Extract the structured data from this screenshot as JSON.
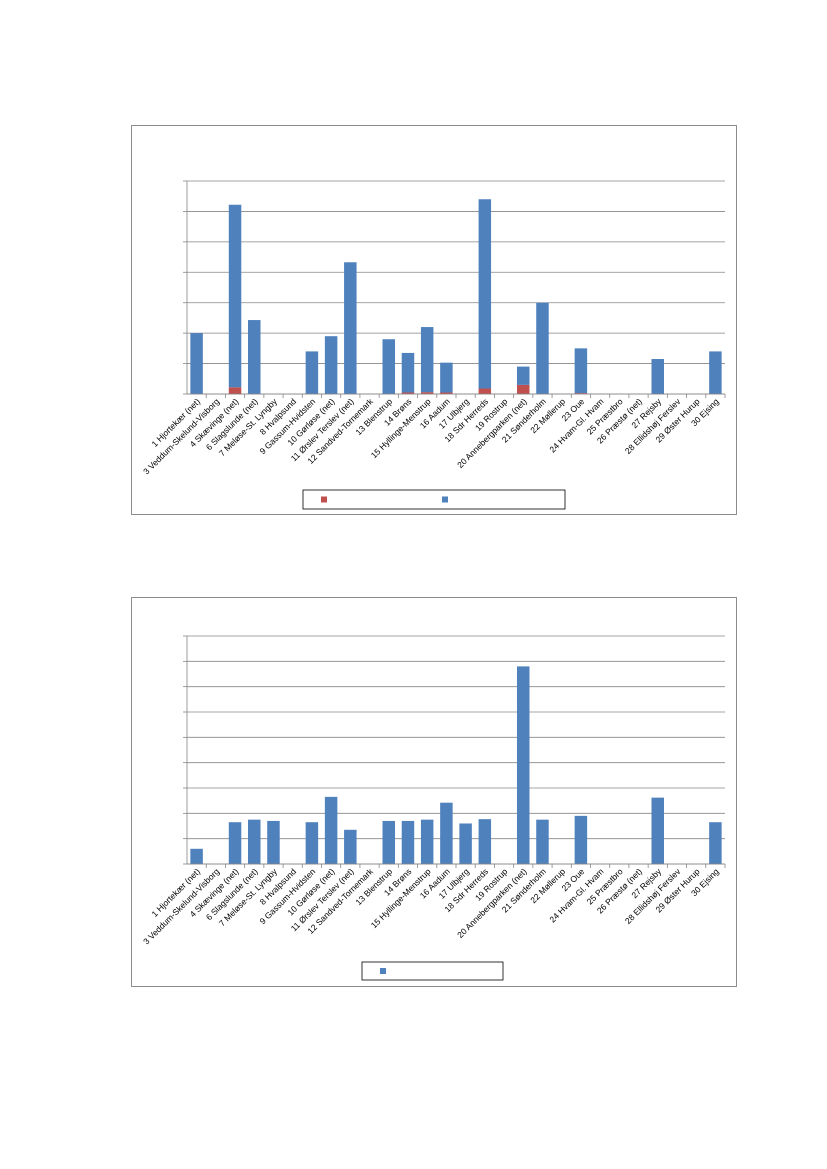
{
  "charts": [
    {
      "type": "bar",
      "stacked": true,
      "grid": true,
      "legend": "bottom",
      "ylim": [
        0,
        7
      ],
      "categories": [
        "1 Hjortekær (net)",
        "3 Veddum-Skelund-Visborg",
        "4 Skævinge (net)",
        "6 Slagslunde (net)",
        "7 Meløse-St. Lyngby",
        "8 Hvalpsund",
        "9 Gassum-Hvidsten",
        "10 Gørløse (net)",
        "11 Ørslev Terslev (net)",
        "12 Sandved-Tornemark",
        "13 Blenstrup",
        "14 Brøns",
        "15 Hyllinge-Menstrup",
        "16 Aadum",
        "17 Ulbjerg",
        "18 Sdr Herreds",
        "19 Rostrup",
        "20 Annebergparken (net)",
        "21 Sønderholm",
        "22 Møllerup",
        "23 Oue",
        "24 Hvam-Gl. Hvam",
        "25 Præstbro",
        "26 Præstø (net)",
        "27 Rejsby",
        "28 Ellidshøj Ferslev",
        "29 Øster Hurup",
        "30 Ejsing"
      ],
      "series": [
        {
          "color": "#c0504d",
          "values": [
            0,
            0,
            0.22,
            0,
            0,
            0,
            0,
            0,
            0,
            0,
            0,
            0.05,
            0.06,
            0.05,
            0,
            0.18,
            0,
            0.3,
            0,
            0,
            0.03,
            0,
            0,
            0,
            0,
            0,
            0,
            0
          ]
        },
        {
          "color": "#4f81bd",
          "values": [
            2.0,
            0,
            6.0,
            2.43,
            0,
            0,
            1.4,
            1.9,
            4.33,
            0,
            1.8,
            1.3,
            2.14,
            0.98,
            0,
            6.22,
            0,
            0.6,
            3.0,
            0,
            1.47,
            0,
            0,
            0,
            1.15,
            0,
            0,
            1.4
          ]
        }
      ]
    },
    {
      "type": "bar",
      "grid": true,
      "legend": "bottom",
      "ylim": [
        0,
        9
      ],
      "categories": [
        "1 Hjortekær (net)",
        "3 Veddum-Skelund-Visborg",
        "4 Skævinge (net)",
        "6 Slagslunde (net)",
        "7 Meløse-St. Lyngby",
        "8 Hvalpsund",
        "9 Gassum-Hvidsten",
        "10 Gørløse (net)",
        "11 Ørslev Terslev (net)",
        "12 Sandved-Tornemark",
        "13 Blenstrup",
        "14 Brøns",
        "15 Hyllinge-Menstrup",
        "16 Aadum",
        "17 Ulbjerg",
        "18 Sdr Herreds",
        "19 Rostrup",
        "20 Annebergparken (net)",
        "21 Sønderholm",
        "22 Møllerup",
        "23 Oue",
        "24 Hvam-Gl. Hvam",
        "25 Præstbro",
        "26 Præstø (net)",
        "27 Rejsby",
        "28 Ellidshøj Ferslev",
        "29 Øster Hurup",
        "30 Ejsing"
      ],
      "series": [
        {
          "color": "#4f81bd",
          "values": [
            0.6,
            0,
            1.65,
            1.75,
            1.7,
            0,
            1.65,
            2.65,
            1.35,
            0,
            1.7,
            1.7,
            1.75,
            2.42,
            1.6,
            1.77,
            0,
            7.8,
            1.75,
            0,
            1.9,
            0,
            0,
            0,
            2.62,
            0,
            0,
            1.65
          ]
        }
      ]
    }
  ]
}
